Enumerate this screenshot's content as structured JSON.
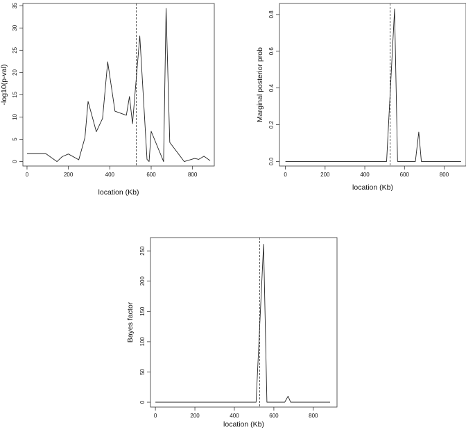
{
  "chart_data": [
    {
      "type": "line",
      "xlabel": "location (Kb)",
      "ylabel": "-log10(p-val)",
      "xlim": [
        -20,
        905
      ],
      "ylim": [
        -1,
        35.5
      ],
      "xticks": [
        0,
        200,
        400,
        600,
        800
      ],
      "yticks": [
        0,
        5,
        10,
        15,
        20,
        25,
        30,
        35
      ],
      "vline": 528,
      "series": [
        {
          "x": [
            0,
            90,
            145,
            170,
            200,
            250,
            280,
            295,
            335,
            365,
            390,
            425,
            480,
            495,
            510,
            545,
            580,
            590,
            600,
            660,
            672,
            690,
            760,
            810,
            830,
            855,
            885
          ],
          "y": [
            1.8,
            1.8,
            0,
            1.1,
            1.7,
            0.4,
            5.4,
            13.5,
            6.7,
            9.7,
            22.4,
            11.3,
            10.4,
            14.6,
            8.5,
            28.2,
            0.5,
            0,
            6.8,
            0,
            34.4,
            4.3,
            0,
            0.7,
            0.5,
            1.2,
            0.2
          ]
        }
      ]
    },
    {
      "type": "line",
      "xlabel": "location (Kb)",
      "ylabel": "Marginal posterior prob",
      "xlim": [
        -30,
        910
      ],
      "ylim": [
        -0.025,
        0.86
      ],
      "xticks": [
        0,
        200,
        400,
        600,
        800
      ],
      "yticks": [
        0.0,
        0.2,
        0.4,
        0.6,
        0.8
      ],
      "ytick_labels": [
        "0.0",
        "0.2",
        "0.4",
        "0.6",
        "0.8"
      ],
      "vline": 528,
      "series": [
        {
          "x": [
            0,
            510,
            550,
            565,
            655,
            672,
            685,
            885
          ],
          "y": [
            0,
            0,
            0.83,
            0,
            0,
            0.16,
            0,
            0
          ]
        }
      ]
    },
    {
      "type": "line",
      "xlabel": "location (Kb)",
      "ylabel": "Bayes factor",
      "xlim": [
        -25,
        920
      ],
      "ylim": [
        -8,
        272
      ],
      "xticks": [
        0,
        200,
        400,
        600,
        800
      ],
      "yticks": [
        0,
        50,
        100,
        150,
        200,
        250
      ],
      "vline": 528,
      "series": [
        {
          "x": [
            0,
            510,
            548,
            565,
            655,
            672,
            685,
            885
          ],
          "y": [
            0,
            0,
            261,
            0,
            0,
            10,
            0,
            0
          ]
        }
      ]
    }
  ]
}
